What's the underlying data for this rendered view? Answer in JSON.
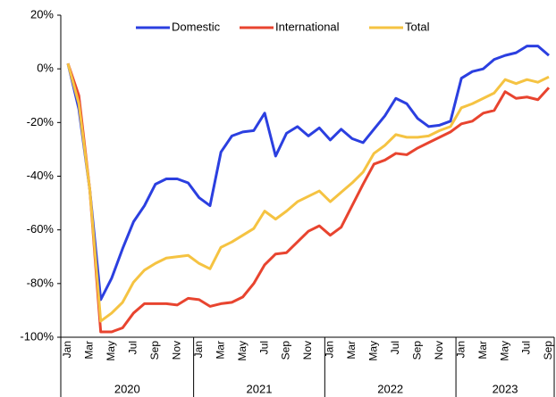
{
  "chart_data": {
    "type": "line",
    "categories": [
      "Jan",
      null,
      "Mar",
      null,
      "May",
      null,
      "Jul",
      null,
      "Sep",
      null,
      "Nov",
      null,
      "Jan",
      null,
      "Mar",
      null,
      "May",
      null,
      "Jul",
      null,
      "Sep",
      null,
      "Nov",
      null,
      "Jan",
      null,
      "Mar",
      null,
      "May",
      null,
      "Jul",
      null,
      "Sep",
      null,
      "Nov",
      null,
      "Jan",
      null,
      "Mar",
      null,
      "May",
      null,
      "Jul",
      null,
      "Sep"
    ],
    "x_groups": [
      "2020",
      "2021",
      "2022",
      "2023"
    ],
    "series": [
      {
        "name": "Domestic",
        "color": "#2b3fe0",
        "values": [
          2,
          -15,
          -45,
          -86,
          -78,
          -67,
          -57,
          -51,
          -43,
          -41,
          -41,
          -42.5,
          -48,
          -51,
          -31,
          -25,
          -23.5,
          -23,
          -16.5,
          -32.5,
          -24,
          -21.5,
          -25,
          -22,
          -26.5,
          -22.5,
          -26,
          -27.5,
          -22.5,
          -17.5,
          -11,
          -13,
          -18.5,
          -21.5,
          -21,
          -19.5,
          -3.5,
          -1,
          0,
          3.5,
          5,
          6,
          8.5,
          8.5,
          5
        ]
      },
      {
        "name": "International",
        "color": "#e8442f",
        "values": [
          2,
          -10,
          -45,
          -98,
          -98,
          -96.5,
          -91,
          -87.5,
          -87.5,
          -87.5,
          -88,
          -85.5,
          -86,
          -88.5,
          -87.5,
          -87,
          -85,
          -80,
          -73,
          -69,
          -68.5,
          -64.5,
          -60.5,
          -58.5,
          -62,
          -59,
          -51,
          -43,
          -35.5,
          -34,
          -31.5,
          -32,
          -29.5,
          -27.5,
          -25.5,
          -23.5,
          -20.5,
          -19.5,
          -16.5,
          -15.5,
          -8.5,
          -11,
          -10.5,
          -11.5,
          -7
        ]
      },
      {
        "name": "Total",
        "color": "#f5c342",
        "values": [
          2,
          -13,
          -45,
          -94,
          -91,
          -87,
          -79.5,
          -75,
          -72.5,
          -70.5,
          -70,
          -69.5,
          -72.5,
          -74.5,
          -66.5,
          -64.5,
          -62,
          -59.5,
          -53,
          -56,
          -53,
          -49.5,
          -47.5,
          -45.5,
          -49.5,
          -46,
          -42.5,
          -38.5,
          -31.5,
          -28.5,
          -24.5,
          -25.5,
          -25.5,
          -25,
          -23,
          -21.5,
          -14.5,
          -13,
          -11,
          -9,
          -4,
          -5.5,
          -4,
          -5,
          -3
        ]
      }
    ],
    "ylim": [
      -100,
      20
    ],
    "yticks": [
      {
        "value": -100,
        "label": "-100%"
      },
      {
        "value": -80,
        "label": "-80%"
      },
      {
        "value": -60,
        "label": "-60%"
      },
      {
        "value": -40,
        "label": "-40%"
      },
      {
        "value": -20,
        "label": "-20%"
      },
      {
        "value": 0,
        "label": "0%"
      },
      {
        "value": 20,
        "label": "20%"
      }
    ],
    "legend": "top"
  }
}
